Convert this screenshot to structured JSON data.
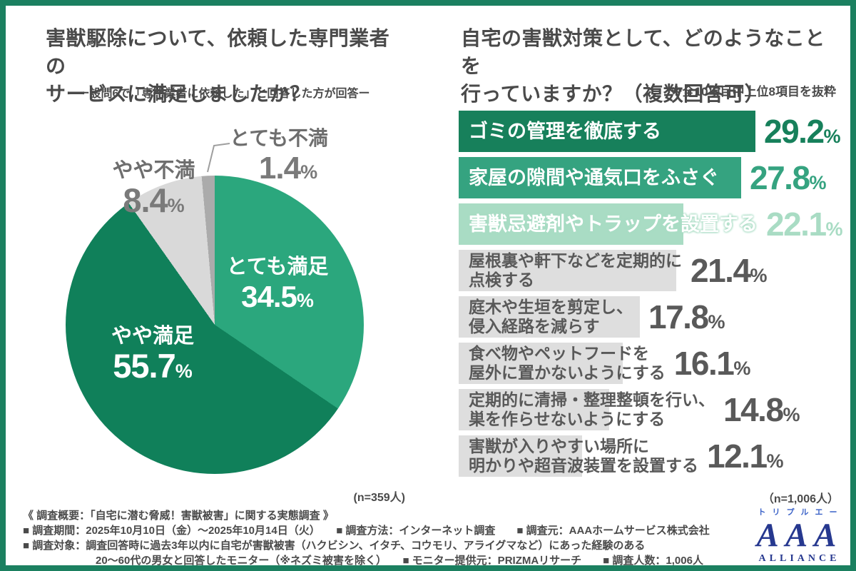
{
  "left_chart": {
    "title_lines": [
      "害獣駆除について、依頼した専門業者の",
      "サービスに満足しましたか？"
    ],
    "subtitle": "ー設問6で「専門業者に依頼した」と回答した方が回答ー",
    "n_note": "(n=359人)"
  },
  "right_chart": {
    "title_lines": [
      "自宅の害獣対策として、どのようなことを",
      "行っていますか？（複数回答可）"
    ],
    "note": "※全10項目中上位8項目を抜粋",
    "n_note": "（n=1,006人）"
  },
  "chart_data": [
    {
      "type": "pie",
      "title": "害獣駆除について、依頼した専門業者のサービスに満足しましたか？",
      "categories": [
        "とても満足",
        "やや満足",
        "やや不満",
        "とても不満"
      ],
      "values": [
        34.5,
        55.7,
        8.4,
        1.4
      ],
      "colors": [
        "#2BA77D",
        "#10805A",
        "#D9D9D9",
        "#ABABAB"
      ],
      "unit": "%",
      "start_angle": "top",
      "direction": "clockwise",
      "n": "359人"
    },
    {
      "type": "bar",
      "orientation": "horizontal",
      "title": "自宅の害獣対策として、どのようなことを行っていますか？（複数回答可）",
      "categories": [
        "ゴミの管理を徹底する",
        "家屋の隙間や通気口をふさぐ",
        "害獣忌避剤やトラップを設置する",
        "屋根裏や軒下などを定期的に\n点検する",
        "庭木や生垣を剪定し、\n侵入経路を減らす",
        "食べ物やペットフードを\n屋外に置かないようにする",
        "定期的に清掃・整理整頓を行い、\n巣を作らせないようにする",
        "害獣が入りやすい場所に\n明かりや超音波装置を設置する"
      ],
      "values": [
        29.2,
        27.8,
        22.1,
        21.4,
        17.8,
        16.1,
        14.8,
        12.1
      ],
      "unit": "%",
      "xlim": [
        0,
        30
      ],
      "bar_colors": [
        "#17805B",
        "#35A380",
        "#A9DCC4",
        "#DEDEDE",
        "#DEDEDE",
        "#DEDEDE",
        "#DEDEDE",
        "#DEDEDE"
      ],
      "label_colors": [
        "#FFFFFF",
        "#FFFFFF",
        "#FFFFFF",
        "#595959",
        "#595959",
        "#595959",
        "#595959",
        "#595959"
      ],
      "value_colors": [
        "#17805B",
        "#35A380",
        "#A9DCC4",
        "#595959",
        "#595959",
        "#595959",
        "#595959",
        "#595959"
      ],
      "n": "1,006人"
    }
  ],
  "footer": {
    "lines": [
      "《 調査概要：「自宅に潜む脅威！害獣被害」に関する実態調査 》",
      "■ 調査期間：2025年10月10日（金）〜2025年10月14日（火）　　■ 調査方法：インターネット調査　　■ 調査元：AAAホームサービス株式会社",
      "■ 調査対象：調査回答時に過去3年以内に自宅が害獣被害（ハクビシン、イタチ、コウモリ、アライグマなど）にあった経験のある",
      "20〜60代の男女と回答したモニター（※ネズミ被害を除く）　　■ モニター提供元：PRIZMAリサーチ　　■ 調査人数：1,006人"
    ]
  },
  "logo": {
    "kana": "トリプルエー",
    "main": "AAA",
    "sub": "ALLIANCE"
  },
  "colors": {
    "frame_green": "#1B8060",
    "dark_green": "#17805B",
    "mid_green": "#35A380",
    "light_green": "#A9DCC4",
    "bar_gray": "#DEDEDE",
    "text_dark": "#4A4A4A",
    "text_gray": "#595959",
    "logo_navy": "#26388F"
  }
}
